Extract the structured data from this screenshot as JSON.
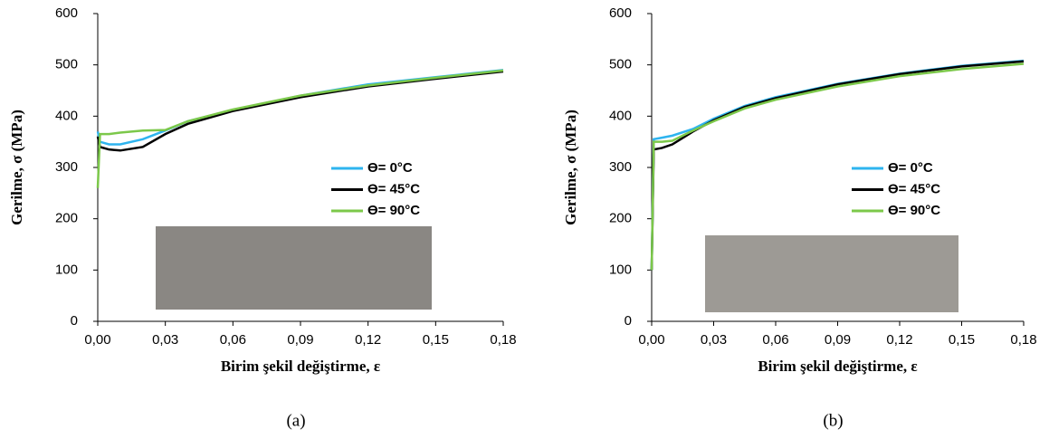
{
  "chart_data": [
    {
      "type": "line",
      "caption": "(a)",
      "ylabel": "Gerilme, σ (MPa)",
      "xlabel": "Birim şekil değiştirme, ε",
      "legend": "right",
      "xlim": [
        0,
        0.18
      ],
      "ylim": [
        0,
        600
      ],
      "xticks": [
        {
          "value": 0,
          "label": "0,00"
        },
        {
          "value": 0.03,
          "label": "0,03"
        },
        {
          "value": 0.06,
          "label": "0,06"
        },
        {
          "value": 0.09,
          "label": "0,09"
        },
        {
          "value": 0.12,
          "label": "0,12"
        },
        {
          "value": 0.15,
          "label": "0,15"
        },
        {
          "value": 0.18,
          "label": "0,18"
        }
      ],
      "yticks": [
        0,
        100,
        200,
        300,
        400,
        500,
        600
      ],
      "x": [
        0,
        0.001,
        0.005,
        0.01,
        0.02,
        0.03,
        0.04,
        0.06,
        0.09,
        0.12,
        0.15,
        0.18
      ],
      "series": [
        {
          "name": "ϴ= 0°C",
          "color": "#2eb4ef",
          "values": [
            370,
            350,
            345,
            345,
            355,
            372,
            390,
            412,
            440,
            462,
            476,
            490
          ]
        },
        {
          "name": "ϴ= 45°C",
          "color": "#000000",
          "values": [
            360,
            340,
            335,
            333,
            340,
            365,
            385,
            410,
            437,
            458,
            473,
            487
          ]
        },
        {
          "name": "ϴ= 90°C",
          "color": "#7cc84a",
          "values": [
            260,
            365,
            365,
            368,
            372,
            373,
            390,
            413,
            440,
            460,
            475,
            489
          ]
        }
      ]
    },
    {
      "type": "line",
      "caption": "(b)",
      "ylabel": "Gerilme, σ (MPa)",
      "xlabel": "Birim şekil değiştirme, ε",
      "legend": "right",
      "xlim": [
        0,
        0.18
      ],
      "ylim": [
        0,
        600
      ],
      "xticks": [
        {
          "value": 0,
          "label": "0,00"
        },
        {
          "value": 0.03,
          "label": "0,03"
        },
        {
          "value": 0.06,
          "label": "0,06"
        },
        {
          "value": 0.09,
          "label": "0,09"
        },
        {
          "value": 0.12,
          "label": "0,12"
        },
        {
          "value": 0.15,
          "label": "0,15"
        },
        {
          "value": 0.18,
          "label": "0,18"
        }
      ],
      "yticks": [
        0,
        100,
        200,
        300,
        400,
        500,
        600
      ],
      "x": [
        0,
        0.001,
        0.005,
        0.01,
        0.02,
        0.03,
        0.045,
        0.06,
        0.09,
        0.12,
        0.15,
        0.18
      ],
      "series": [
        {
          "name": "ϴ= 0°C",
          "color": "#2eb4ef",
          "values": [
            100,
            355,
            358,
            362,
            375,
            395,
            420,
            437,
            463,
            483,
            498,
            508
          ]
        },
        {
          "name": "ϴ= 45°C",
          "color": "#000000",
          "values": [
            100,
            335,
            338,
            345,
            370,
            392,
            418,
            435,
            462,
            482,
            497,
            507
          ]
        },
        {
          "name": "ϴ= 90°C",
          "color": "#7cc84a",
          "values": [
            100,
            350,
            350,
            352,
            372,
            390,
            415,
            432,
            458,
            478,
            492,
            502
          ]
        }
      ]
    }
  ]
}
